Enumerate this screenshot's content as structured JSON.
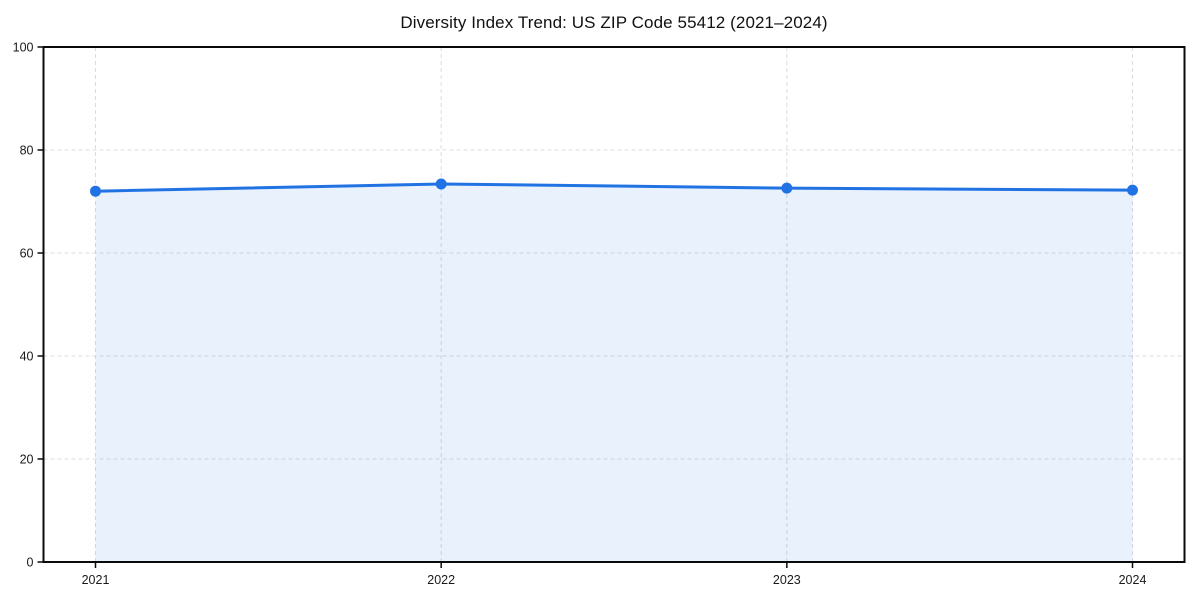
{
  "figure": {
    "background": "#ffffff"
  },
  "chart_data": {
    "type": "area",
    "title": "Diversity Index Trend: US ZIP Code 55412 (2021–2024)",
    "categories": [
      "2021",
      "2022",
      "2023",
      "2024"
    ],
    "series": [
      {
        "name": "Diversity Index",
        "values": [
          72.0,
          73.4,
          72.6,
          72.2
        ]
      }
    ],
    "xlabel": "",
    "ylabel": "",
    "ylim": [
      0,
      100
    ],
    "y_ticks": [
      0,
      20,
      40,
      60,
      80,
      100
    ],
    "grid": true,
    "grid_style": "dashed",
    "legend_position": "none",
    "colors": {
      "line": "#2173e4",
      "marker": "#2173e4",
      "fill": "rgba(33,115,228,0.10)",
      "grid": "#dcdcdc",
      "axis": "#0a0a0a",
      "tick_label": "#1a1a1a",
      "title": "#111111"
    }
  }
}
